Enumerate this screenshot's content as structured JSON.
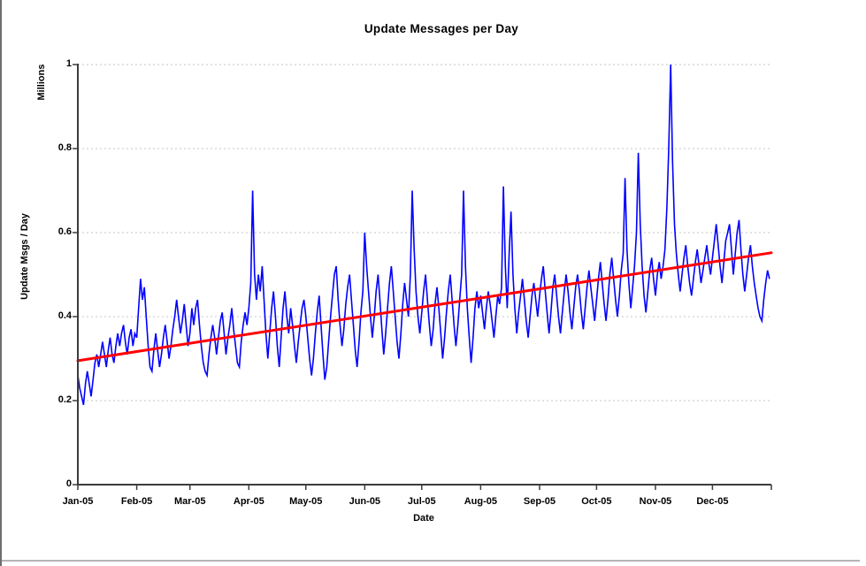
{
  "chart_data": {
    "type": "line",
    "title": "Update Messages per Day",
    "xlabel": "Date",
    "ylabel": "Update Msgs / Day",
    "y_unit_label": "Millions",
    "ylim": [
      0,
      1
    ],
    "y_tick_values": [
      0,
      0.2,
      0.4,
      0.6,
      0.8,
      1
    ],
    "y_tick_labels": [
      "0",
      "0.2",
      "0.4",
      "0.6",
      "0.8",
      "1"
    ],
    "x_tick_labels": [
      "Jan-05",
      "Feb-05",
      "Mar-05",
      "Apr-05",
      "May-05",
      "Jun-05",
      "Jul-05",
      "Aug-05",
      "Sep-05",
      "Oct-05",
      "Nov-05",
      "Dec-05"
    ],
    "grid": "horizontal-dashed",
    "grid_color": "#c6c6c6",
    "axis_color": "#3c3c3c",
    "legend": "none",
    "daily_series": {
      "color": "#0000ff",
      "values": [
        0.26,
        0.23,
        0.21,
        0.19,
        0.24,
        0.27,
        0.24,
        0.21,
        0.25,
        0.29,
        0.31,
        0.28,
        0.31,
        0.34,
        0.31,
        0.28,
        0.32,
        0.35,
        0.31,
        0.29,
        0.33,
        0.36,
        0.33,
        0.36,
        0.38,
        0.34,
        0.31,
        0.35,
        0.37,
        0.33,
        0.36,
        0.35,
        0.42,
        0.49,
        0.44,
        0.47,
        0.4,
        0.33,
        0.28,
        0.27,
        0.32,
        0.36,
        0.32,
        0.28,
        0.31,
        0.35,
        0.38,
        0.34,
        0.3,
        0.33,
        0.37,
        0.4,
        0.44,
        0.4,
        0.36,
        0.39,
        0.43,
        0.38,
        0.33,
        0.36,
        0.42,
        0.38,
        0.42,
        0.44,
        0.38,
        0.33,
        0.29,
        0.27,
        0.26,
        0.31,
        0.35,
        0.38,
        0.35,
        0.31,
        0.35,
        0.39,
        0.41,
        0.36,
        0.31,
        0.35,
        0.38,
        0.42,
        0.37,
        0.33,
        0.29,
        0.28,
        0.34,
        0.38,
        0.41,
        0.38,
        0.42,
        0.48,
        0.7,
        0.5,
        0.44,
        0.5,
        0.46,
        0.52,
        0.44,
        0.36,
        0.3,
        0.36,
        0.42,
        0.46,
        0.4,
        0.33,
        0.28,
        0.35,
        0.42,
        0.46,
        0.4,
        0.36,
        0.42,
        0.38,
        0.33,
        0.29,
        0.34,
        0.38,
        0.42,
        0.44,
        0.4,
        0.35,
        0.3,
        0.26,
        0.3,
        0.36,
        0.41,
        0.45,
        0.38,
        0.31,
        0.25,
        0.28,
        0.34,
        0.4,
        0.45,
        0.5,
        0.52,
        0.44,
        0.38,
        0.33,
        0.37,
        0.43,
        0.47,
        0.5,
        0.44,
        0.38,
        0.32,
        0.28,
        0.34,
        0.41,
        0.46,
        0.6,
        0.52,
        0.46,
        0.4,
        0.35,
        0.4,
        0.46,
        0.5,
        0.44,
        0.37,
        0.31,
        0.36,
        0.42,
        0.48,
        0.52,
        0.46,
        0.4,
        0.34,
        0.3,
        0.36,
        0.43,
        0.48,
        0.44,
        0.4,
        0.5,
        0.7,
        0.56,
        0.46,
        0.4,
        0.36,
        0.41,
        0.46,
        0.5,
        0.44,
        0.38,
        0.33,
        0.37,
        0.43,
        0.47,
        0.42,
        0.36,
        0.3,
        0.35,
        0.41,
        0.46,
        0.5,
        0.44,
        0.38,
        0.33,
        0.38,
        0.44,
        0.5,
        0.7,
        0.52,
        0.42,
        0.35,
        0.29,
        0.35,
        0.42,
        0.46,
        0.42,
        0.45,
        0.41,
        0.37,
        0.42,
        0.46,
        0.43,
        0.39,
        0.35,
        0.4,
        0.45,
        0.43,
        0.47,
        0.71,
        0.52,
        0.42,
        0.55,
        0.65,
        0.5,
        0.42,
        0.36,
        0.41,
        0.45,
        0.49,
        0.44,
        0.39,
        0.35,
        0.4,
        0.45,
        0.48,
        0.44,
        0.4,
        0.45,
        0.49,
        0.52,
        0.46,
        0.41,
        0.36,
        0.41,
        0.47,
        0.5,
        0.45,
        0.4,
        0.36,
        0.41,
        0.46,
        0.5,
        0.46,
        0.41,
        0.37,
        0.42,
        0.47,
        0.5,
        0.46,
        0.41,
        0.37,
        0.42,
        0.47,
        0.51,
        0.47,
        0.43,
        0.39,
        0.44,
        0.49,
        0.53,
        0.48,
        0.43,
        0.39,
        0.44,
        0.5,
        0.54,
        0.49,
        0.44,
        0.4,
        0.45,
        0.51,
        0.55,
        0.73,
        0.56,
        0.48,
        0.42,
        0.47,
        0.52,
        0.6,
        0.79,
        0.62,
        0.52,
        0.45,
        0.41,
        0.46,
        0.51,
        0.54,
        0.49,
        0.45,
        0.5,
        0.53,
        0.49,
        0.52,
        0.56,
        0.66,
        0.8,
        1.0,
        0.77,
        0.62,
        0.55,
        0.5,
        0.46,
        0.5,
        0.54,
        0.57,
        0.52,
        0.48,
        0.45,
        0.49,
        0.53,
        0.56,
        0.52,
        0.48,
        0.51,
        0.54,
        0.57,
        0.53,
        0.5,
        0.54,
        0.58,
        0.62,
        0.57,
        0.52,
        0.48,
        0.53,
        0.58,
        0.6,
        0.62,
        0.56,
        0.5,
        0.55,
        0.6,
        0.63,
        0.56,
        0.5,
        0.46,
        0.5,
        0.54,
        0.57,
        0.52,
        0.48,
        0.45,
        0.42,
        0.4,
        0.39,
        0.44,
        0.48,
        0.51,
        0.49
      ]
    },
    "trend_line": {
      "color": "#ff0000",
      "start_value": 0.295,
      "end_value": 0.552
    }
  }
}
